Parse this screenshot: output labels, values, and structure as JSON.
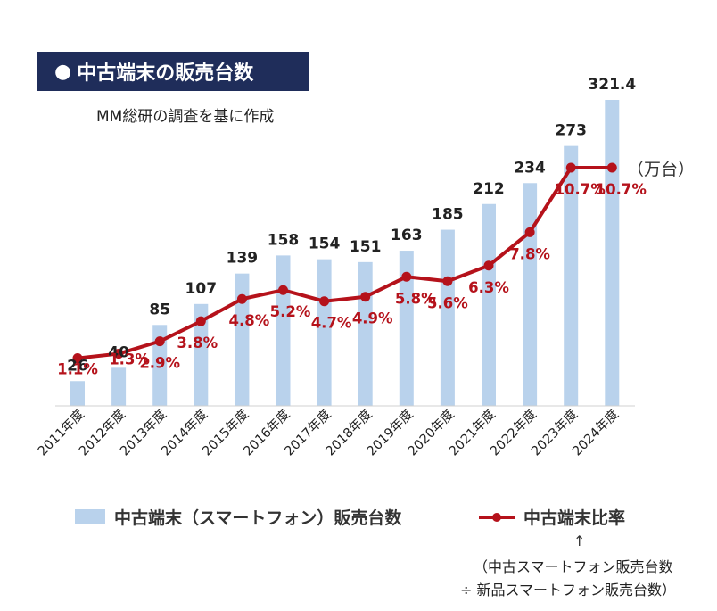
{
  "header": {
    "title": "中古端末の販売台数",
    "title_bullet": "●",
    "source": "MM総研の調査を基に作成"
  },
  "chart_data": {
    "type": "bar",
    "categories": [
      "2011年度",
      "2012年度",
      "2013年度",
      "2014年度",
      "2015年度",
      "2016年度",
      "2017年度",
      "2018年度",
      "2019年度",
      "2020年度",
      "2021年度",
      "2022年度",
      "2023年度",
      "2024年度"
    ],
    "series": [
      {
        "name": "中古端末（スマートフォン）販売台数",
        "type": "bar",
        "values": [
          26,
          40,
          85,
          107,
          139,
          158,
          154,
          151,
          163,
          185,
          212,
          234,
          273,
          321.4
        ],
        "labels": [
          "26",
          "40",
          "85",
          "107",
          "139",
          "158",
          "154",
          "151",
          "163",
          "185",
          "212",
          "234",
          "273",
          "321.4"
        ],
        "color": "#b9d2ec"
      },
      {
        "name": "中古端末比率",
        "type": "line",
        "values": [
          1.1,
          1.3,
          2.9,
          3.8,
          4.8,
          5.2,
          4.7,
          4.9,
          5.8,
          5.6,
          6.3,
          7.8,
          10.7,
          10.7
        ],
        "labels": [
          "1.1%",
          "1.3%",
          "2.9%",
          "3.8%",
          "4.8%",
          "5.2%",
          "4.7%",
          "4.9%",
          "5.8%",
          "5.6%",
          "6.3%",
          "7.8%",
          "10.7%",
          "10.7%"
        ],
        "color": "#b5121b"
      }
    ],
    "unit_label": "（万台）"
  },
  "legend": {
    "bar_label": "中古端末（スマートフォン）販売台数",
    "line_label": "中古端末比率",
    "arrow": "↑",
    "formula_line1": "（中古スマートフォン販売台数",
    "formula_line2": "÷ 新品スマートフォン販売台数）"
  }
}
